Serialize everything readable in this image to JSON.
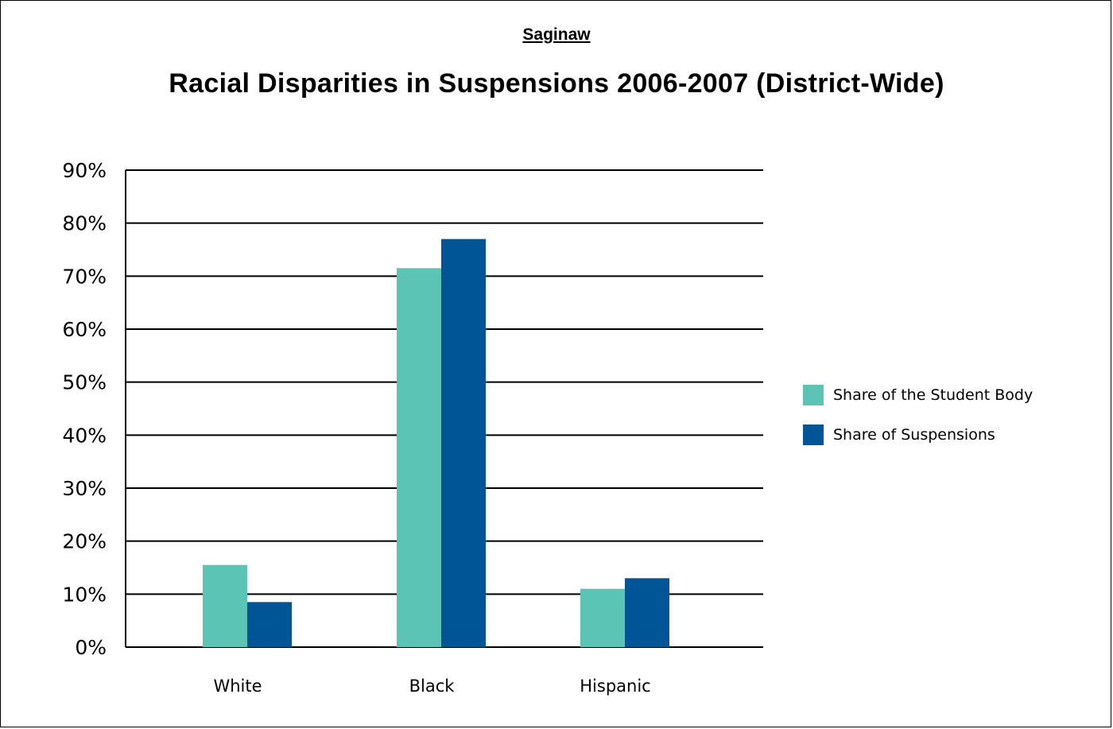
{
  "header": {
    "subtitle": "Saginaw",
    "title": "Racial Disparities in Suspensions 2006-2007 (District-Wide)"
  },
  "colors": {
    "student_body": "#5bc4b5",
    "suspensions": "#005596"
  },
  "chart_data": {
    "type": "bar",
    "title": "Racial Disparities in Suspensions 2006-2007 (District-Wide)",
    "subtitle": "Saginaw",
    "categories": [
      "White",
      "Black",
      "Hispanic"
    ],
    "series": [
      {
        "name": "Share of the Student Body",
        "values": [
          15.5,
          71.5,
          11
        ]
      },
      {
        "name": "Share of Suspensions",
        "values": [
          8.5,
          77,
          13
        ]
      }
    ],
    "ylim": [
      0,
      90
    ],
    "yticks": [
      "0%",
      "10%",
      "20%",
      "30%",
      "40%",
      "50%",
      "60%",
      "70%",
      "80%",
      "90%"
    ],
    "grid": true,
    "legend_position": "right"
  }
}
